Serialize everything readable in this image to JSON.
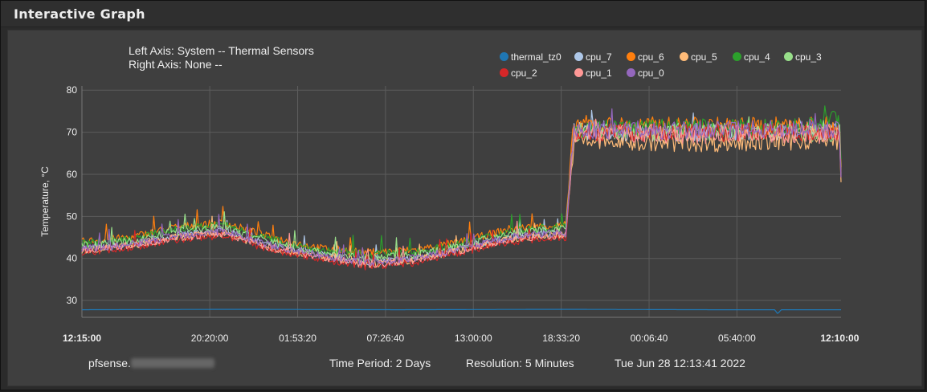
{
  "panel": {
    "title": "Interactive Graph"
  },
  "axis_info": {
    "left": "Left Axis: System -- Thermal Sensors",
    "right": "Right Axis: None --"
  },
  "footer": {
    "host_prefix": "pfsense.",
    "period": "Time Period: 2 Days",
    "resolution": "Resolution: 5 Minutes",
    "timestamp": "Tue Jun 28 12:13:41 2022"
  },
  "chart_data": {
    "type": "line",
    "ylabel": "Temperature, °C",
    "ylim": [
      26,
      81
    ],
    "yticks": [
      30,
      40,
      50,
      60,
      70,
      80
    ],
    "xlim": [
      0,
      48
    ],
    "xticks": [
      {
        "x": 0,
        "label": "12:15:00",
        "bold": true
      },
      {
        "x": 8.0833,
        "label": "20:20:00",
        "bold": false
      },
      {
        "x": 13.6389,
        "label": "01:53:20",
        "bold": false
      },
      {
        "x": 19.1944,
        "label": "07:26:40",
        "bold": false
      },
      {
        "x": 24.75,
        "label": "13:00:00",
        "bold": false
      },
      {
        "x": 30.3056,
        "label": "18:33:20",
        "bold": false
      },
      {
        "x": 35.8611,
        "label": "00:06:40",
        "bold": false
      },
      {
        "x": 41.4167,
        "label": "05:40:00",
        "bold": false
      },
      {
        "x": 47.9167,
        "label": "12:10:00",
        "bold": true
      }
    ],
    "grid": true,
    "legend_position": "top-right",
    "series": [
      {
        "name": "thermal_tz0",
        "color": "#1f77b4",
        "points": [
          [
            0,
            27.8
          ],
          [
            10,
            27.9
          ],
          [
            20,
            27.8
          ],
          [
            30,
            27.9
          ],
          [
            40,
            27.8
          ],
          [
            43.8,
            27.8
          ],
          [
            44,
            26.8
          ],
          [
            44.2,
            27.8
          ],
          [
            48,
            27.8
          ]
        ]
      },
      {
        "name": "cpu_7",
        "color": "#aec7e8",
        "points": [
          [
            0,
            42.5
          ],
          [
            3,
            43
          ],
          [
            6,
            45.5
          ],
          [
            9,
            46.5
          ],
          [
            12,
            43
          ],
          [
            15,
            41
          ],
          [
            18,
            39
          ],
          [
            21,
            40
          ],
          [
            24,
            42.5
          ],
          [
            27,
            45
          ],
          [
            30,
            46
          ],
          [
            30.6,
            46
          ],
          [
            31.1,
            70.5
          ],
          [
            34,
            70
          ],
          [
            38,
            70
          ],
          [
            42,
            70
          ],
          [
            46,
            70.5
          ],
          [
            47.9,
            70
          ],
          [
            48,
            60
          ]
        ]
      },
      {
        "name": "cpu_6",
        "color": "#ff7f0e",
        "points": [
          [
            0,
            44
          ],
          [
            3,
            45
          ],
          [
            6,
            47.5
          ],
          [
            9,
            48.5
          ],
          [
            12,
            45
          ],
          [
            15,
            42.5
          ],
          [
            18,
            41.5
          ],
          [
            21,
            42
          ],
          [
            24,
            44
          ],
          [
            27,
            47
          ],
          [
            30,
            48
          ],
          [
            30.6,
            48
          ],
          [
            31.1,
            72
          ],
          [
            34,
            71.5
          ],
          [
            38,
            71.5
          ],
          [
            42,
            71.5
          ],
          [
            46,
            71.5
          ],
          [
            47.9,
            71.5
          ],
          [
            48,
            61
          ]
        ]
      },
      {
        "name": "cpu_5",
        "color": "#ffbb78",
        "points": [
          [
            0,
            42
          ],
          [
            3,
            43
          ],
          [
            6,
            45
          ],
          [
            9,
            46
          ],
          [
            12,
            42.5
          ],
          [
            15,
            40.5
          ],
          [
            18,
            38.5
          ],
          [
            21,
            39.5
          ],
          [
            24,
            42
          ],
          [
            27,
            44.5
          ],
          [
            30,
            45.5
          ],
          [
            30.6,
            45.5
          ],
          [
            31.1,
            68
          ],
          [
            34,
            67.5
          ],
          [
            38,
            67.5
          ],
          [
            42,
            67.5
          ],
          [
            46,
            68
          ],
          [
            47.9,
            68
          ],
          [
            48,
            59
          ]
        ]
      },
      {
        "name": "cpu_4",
        "color": "#2ca02c",
        "points": [
          [
            0,
            43.5
          ],
          [
            3,
            44.5
          ],
          [
            6,
            47
          ],
          [
            9,
            48
          ],
          [
            12,
            44.5
          ],
          [
            15,
            42
          ],
          [
            18,
            41
          ],
          [
            21,
            41.5
          ],
          [
            24,
            43.5
          ],
          [
            27,
            46.5
          ],
          [
            30,
            47.5
          ],
          [
            30.6,
            47.5
          ],
          [
            31.1,
            71
          ],
          [
            34,
            71
          ],
          [
            38,
            71
          ],
          [
            42,
            71
          ],
          [
            46,
            71.5
          ],
          [
            47.9,
            74
          ],
          [
            48,
            62
          ]
        ]
      },
      {
        "name": "cpu_3",
        "color": "#98df8a",
        "points": [
          [
            0,
            43
          ],
          [
            3,
            44
          ],
          [
            6,
            46.5
          ],
          [
            9,
            47.5
          ],
          [
            12,
            44
          ],
          [
            15,
            41.5
          ],
          [
            18,
            40
          ],
          [
            21,
            41
          ],
          [
            24,
            43
          ],
          [
            27,
            46
          ],
          [
            30,
            47
          ],
          [
            30.6,
            47
          ],
          [
            31.1,
            70
          ],
          [
            34,
            70
          ],
          [
            38,
            70
          ],
          [
            42,
            70
          ],
          [
            46,
            70
          ],
          [
            47.9,
            70
          ],
          [
            48,
            60
          ]
        ]
      },
      {
        "name": "cpu_2",
        "color": "#d62728",
        "points": [
          [
            0,
            41.5
          ],
          [
            3,
            42.5
          ],
          [
            6,
            44.5
          ],
          [
            9,
            45.5
          ],
          [
            12,
            42
          ],
          [
            15,
            40
          ],
          [
            18,
            38
          ],
          [
            21,
            39
          ],
          [
            24,
            41.5
          ],
          [
            27,
            44
          ],
          [
            30,
            45
          ],
          [
            30.6,
            45
          ],
          [
            31.1,
            70
          ],
          [
            34,
            70
          ],
          [
            38,
            70
          ],
          [
            42,
            70
          ],
          [
            46,
            70
          ],
          [
            47.9,
            70
          ],
          [
            48,
            59
          ]
        ]
      },
      {
        "name": "cpu_1",
        "color": "#ff9896",
        "points": [
          [
            0,
            42
          ],
          [
            3,
            43
          ],
          [
            6,
            45
          ],
          [
            9,
            46
          ],
          [
            12,
            42.5
          ],
          [
            15,
            40.5
          ],
          [
            18,
            38.5
          ],
          [
            21,
            39.5
          ],
          [
            24,
            42
          ],
          [
            27,
            44.5
          ],
          [
            30,
            45.5
          ],
          [
            30.6,
            45.5
          ],
          [
            31.1,
            69.5
          ],
          [
            34,
            69.5
          ],
          [
            38,
            69.5
          ],
          [
            42,
            69.5
          ],
          [
            46,
            69.5
          ],
          [
            47.9,
            69.5
          ],
          [
            48,
            59.5
          ]
        ]
      },
      {
        "name": "cpu_0",
        "color": "#9467bd",
        "points": [
          [
            0,
            42.2
          ],
          [
            3,
            43.2
          ],
          [
            6,
            45.5
          ],
          [
            9,
            46.5
          ],
          [
            12,
            43
          ],
          [
            15,
            40.8
          ],
          [
            18,
            39
          ],
          [
            21,
            40
          ],
          [
            24,
            42.3
          ],
          [
            27,
            45
          ],
          [
            30,
            46
          ],
          [
            30.6,
            46
          ],
          [
            31.1,
            70.5
          ],
          [
            34,
            70.5
          ],
          [
            38,
            70.5
          ],
          [
            42,
            70.5
          ],
          [
            46,
            71
          ],
          [
            47.9,
            70.5
          ],
          [
            48,
            60
          ]
        ]
      }
    ]
  }
}
